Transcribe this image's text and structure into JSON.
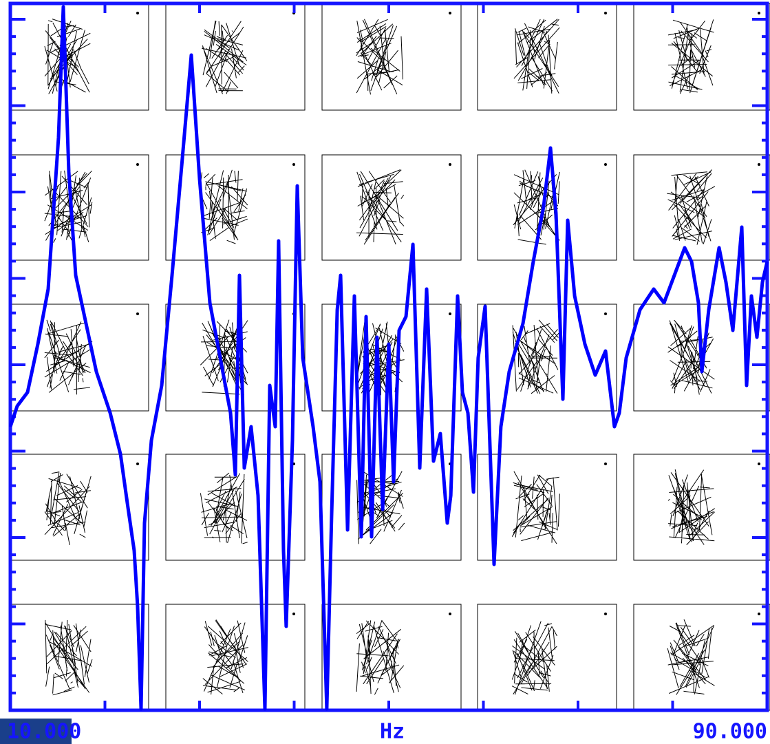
{
  "chart_data": {
    "type": "line",
    "x_label": "Hz",
    "xlim": [
      10,
      90
    ],
    "xticks": [
      {
        "value": 10,
        "label": "10.000"
      },
      20,
      30,
      40,
      50,
      60,
      70,
      80,
      {
        "value": 90,
        "label": "90.000"
      }
    ],
    "ylim": [
      0,
      1027
    ],
    "color": "#0000ff",
    "x": [
      10,
      10.73,
      11.82,
      12.91,
      14.0,
      15.09,
      15.6,
      16.18,
      16.91,
      18.0,
      19.09,
      20.55,
      21.64,
      22.36,
      23.09,
      23.45,
      23.82,
      24.18,
      24.91,
      26.0,
      27.09,
      28.18,
      29.13,
      30.0,
      31.09,
      32.18,
      33.27,
      33.78,
      34.22,
      34.73,
      35.45,
      36.18,
      36.91,
      37.42,
      38.0,
      38.36,
      38.87,
      39.16,
      39.82,
      40.33,
      40.91,
      42.0,
      42.73,
      43.45,
      43.96,
      44.55,
      44.91,
      45.64,
      46.36,
      47.09,
      47.6,
      48.18,
      48.76,
      49.35,
      50.0,
      50.51,
      51.09,
      51.82,
      52.55,
      53.27,
      54.0,
      54.73,
      55.45,
      56.18,
      56.55,
      57.27,
      57.78,
      58.36,
      58.95,
      59.45,
      60.18,
      61.13,
      61.85,
      62.73,
      64.18,
      65.27,
      66.36,
      67.09,
      67.67,
      68.4,
      68.91,
      69.64,
      70.73,
      71.82,
      72.91,
      73.85,
      74.36,
      75.09,
      76.55,
      78.0,
      79.09,
      80.18,
      81.27,
      82.0,
      82.73,
      83.09,
      83.82,
      84.91,
      85.64,
      86.36,
      87.31,
      87.82,
      88.33,
      88.91,
      89.49,
      90
    ],
    "values": [
      412,
      442,
      462,
      532,
      612,
      832,
      1022,
      782,
      632,
      562,
      492,
      432,
      372,
      302,
      232,
      152,
      2,
      272,
      392,
      472,
      632,
      802,
      952,
      772,
      592,
      512,
      432,
      342,
      632,
      352,
      412,
      312,
      2,
      472,
      412,
      682,
      232,
      122,
      392,
      762,
      512,
      412,
      332,
      2,
      282,
      582,
      632,
      262,
      602,
      252,
      572,
      252,
      542,
      292,
      532,
      332,
      552,
      572,
      677,
      352,
      612,
      362,
      402,
      272,
      312,
      602,
      462,
      432,
      317,
      512,
      587,
      212,
      412,
      492,
      562,
      652,
      732,
      817,
      722,
      452,
      712,
      602,
      532,
      487,
      522,
      412,
      432,
      512,
      582,
      612,
      592,
      632,
      672,
      652,
      592,
      492,
      582,
      672,
      622,
      552,
      702,
      472,
      602,
      542,
      622,
      652
    ]
  }
}
